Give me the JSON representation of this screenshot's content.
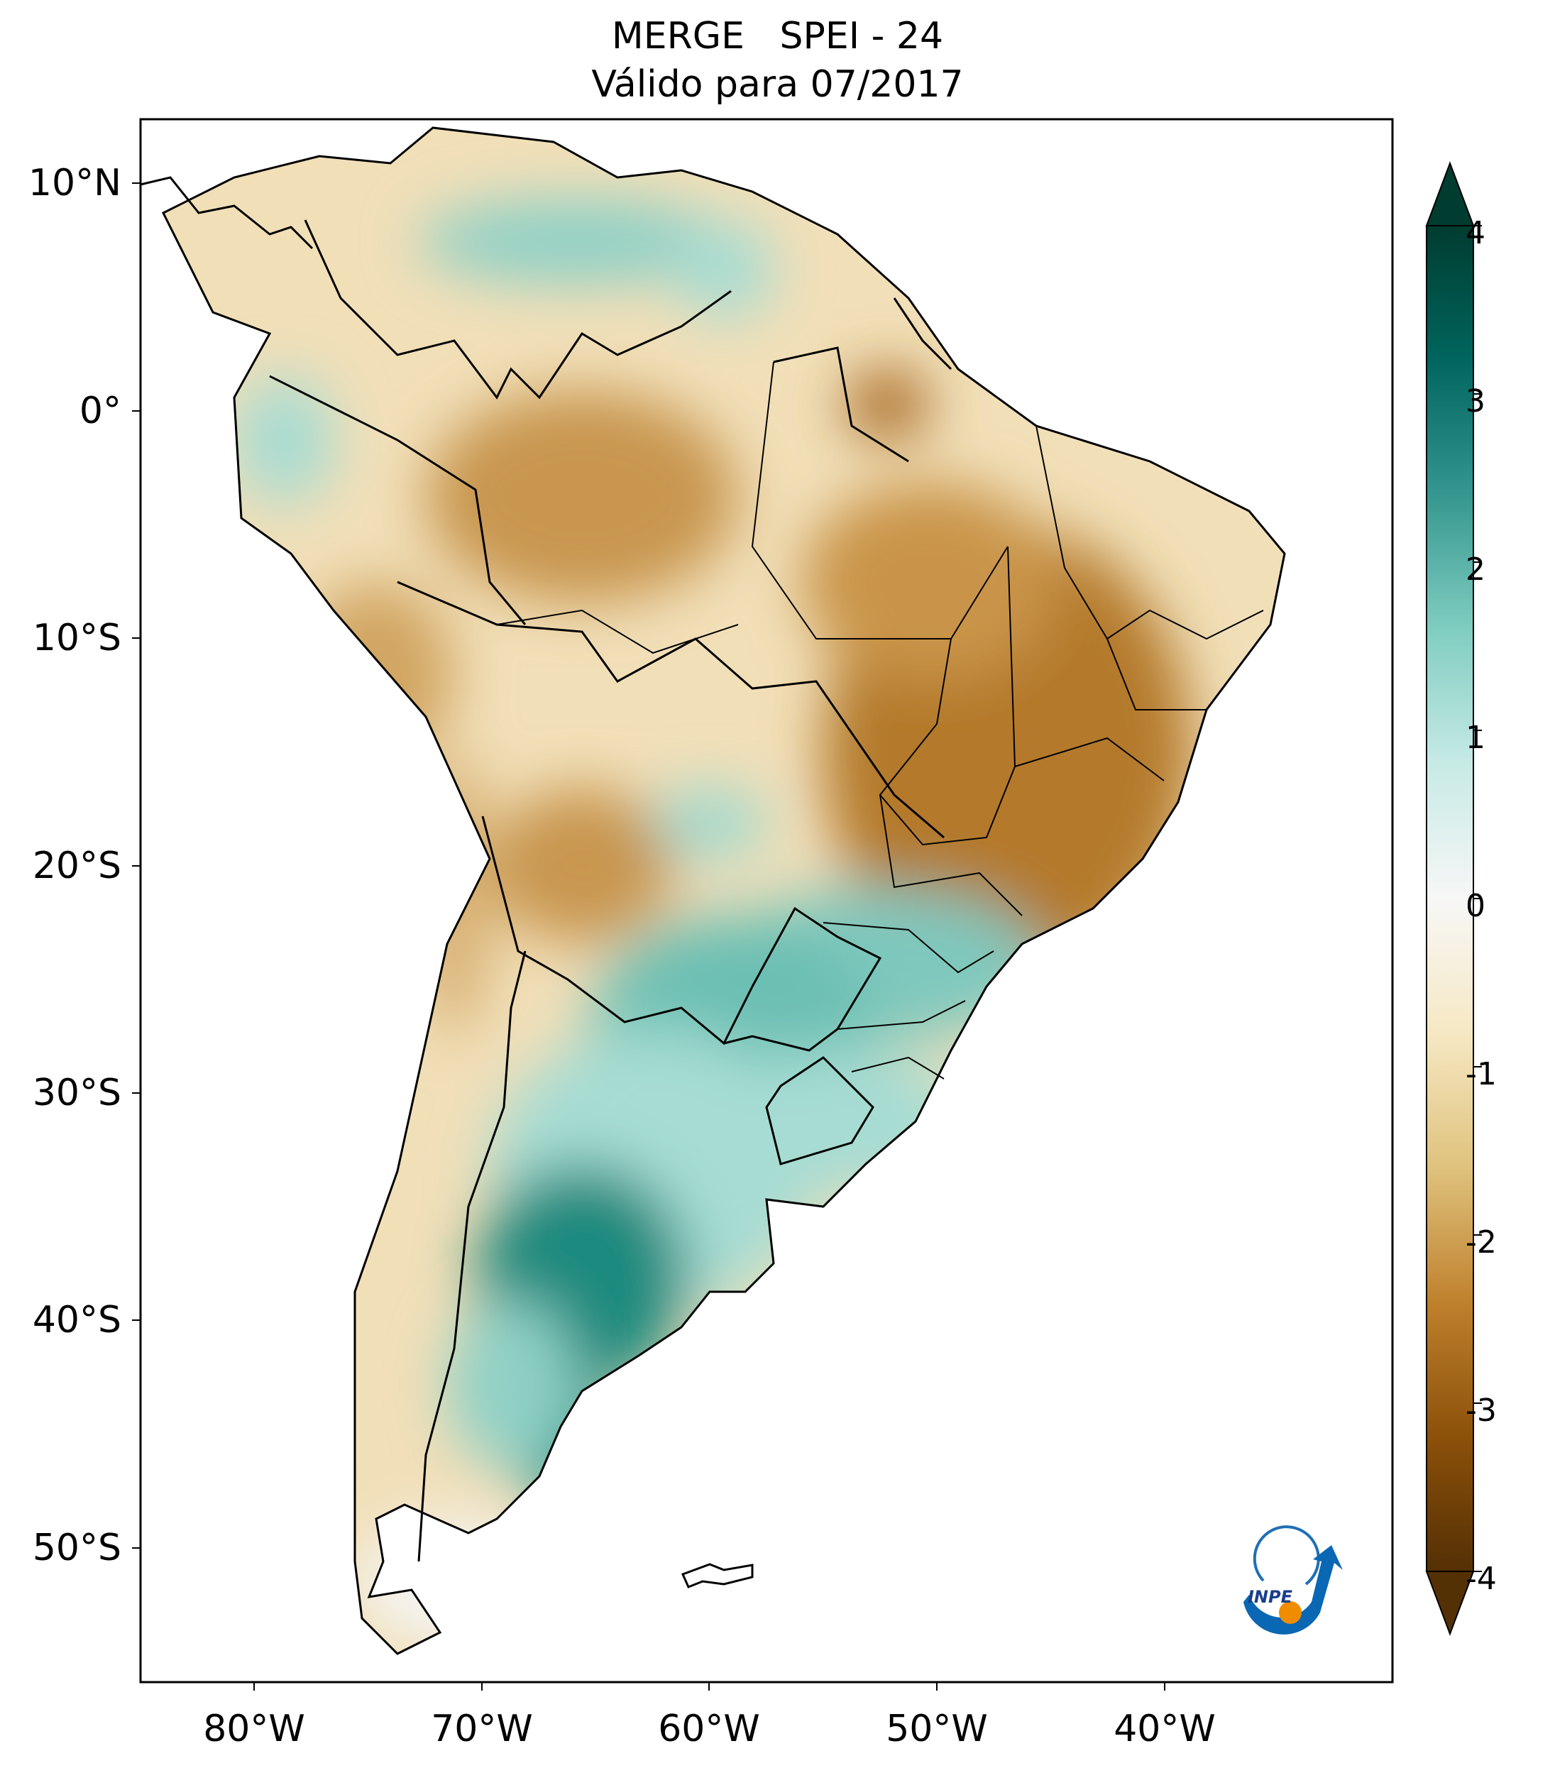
{
  "title": {
    "line1": "MERGE   SPEI - 24",
    "line2": "Válido para 07/2017"
  },
  "map": {
    "lat_ticks": [
      "10°N",
      "0°",
      "10°S",
      "20°S",
      "30°S",
      "40°S",
      "50°S"
    ],
    "lon_ticks": [
      "80°W",
      "70°W",
      "60°W",
      "50°W",
      "40°W"
    ],
    "extent": {
      "lon_min": -85,
      "lon_max": -30,
      "lat_min": -56,
      "lat_max": 13
    }
  },
  "colorbar": {
    "ticks": [
      "4",
      "3",
      "2",
      "1",
      "0",
      "-1",
      "-2",
      "-3",
      "-4"
    ],
    "range": [
      -4,
      4
    ],
    "colors": [
      "#543005",
      "#8c510a",
      "#bf812d",
      "#dfc27d",
      "#f6e8c3",
      "#f5f5f5",
      "#c7eae5",
      "#80cdc1",
      "#35978f",
      "#01665e",
      "#003c30"
    ]
  },
  "logo": {
    "text": "INPE"
  }
}
